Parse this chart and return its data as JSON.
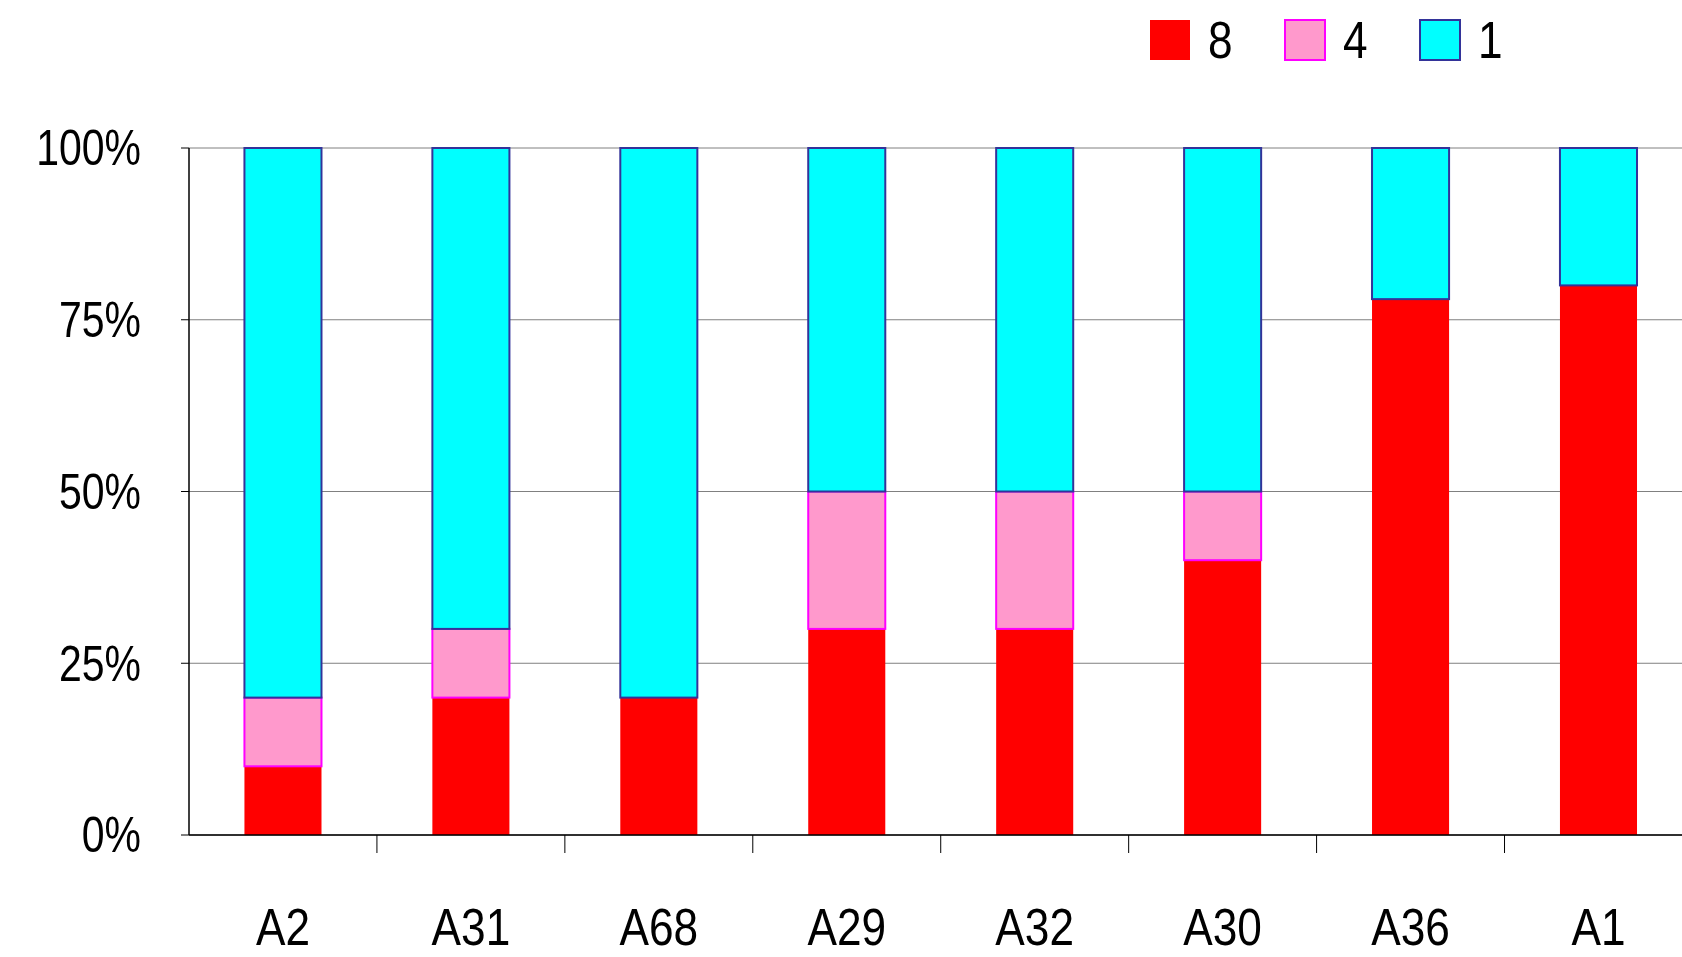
{
  "chart_data": {
    "type": "bar",
    "stacked": true,
    "categories": [
      "A2",
      "A31",
      "A68",
      "A29",
      "A32",
      "A30",
      "A36",
      "A1"
    ],
    "series": [
      {
        "name": "8",
        "color": "#ff0000",
        "values": [
          10,
          20,
          20,
          30,
          30,
          40,
          78,
          80
        ]
      },
      {
        "name": "4",
        "color": "#ff99cc",
        "values": [
          10,
          10,
          0,
          20,
          20,
          10,
          0,
          0
        ]
      },
      {
        "name": "1",
        "color": "#00ffff",
        "values": [
          80,
          70,
          80,
          50,
          50,
          50,
          22,
          20
        ]
      }
    ],
    "ylim": [
      0,
      100
    ],
    "yticks": [
      {
        "value": 0,
        "label": "0%"
      },
      {
        "value": 25,
        "label": "25%"
      },
      {
        "value": 50,
        "label": "50%"
      },
      {
        "value": 75,
        "label": "75%"
      },
      {
        "value": 100,
        "label": "100%"
      }
    ],
    "grid": "y",
    "legend": "top right"
  }
}
